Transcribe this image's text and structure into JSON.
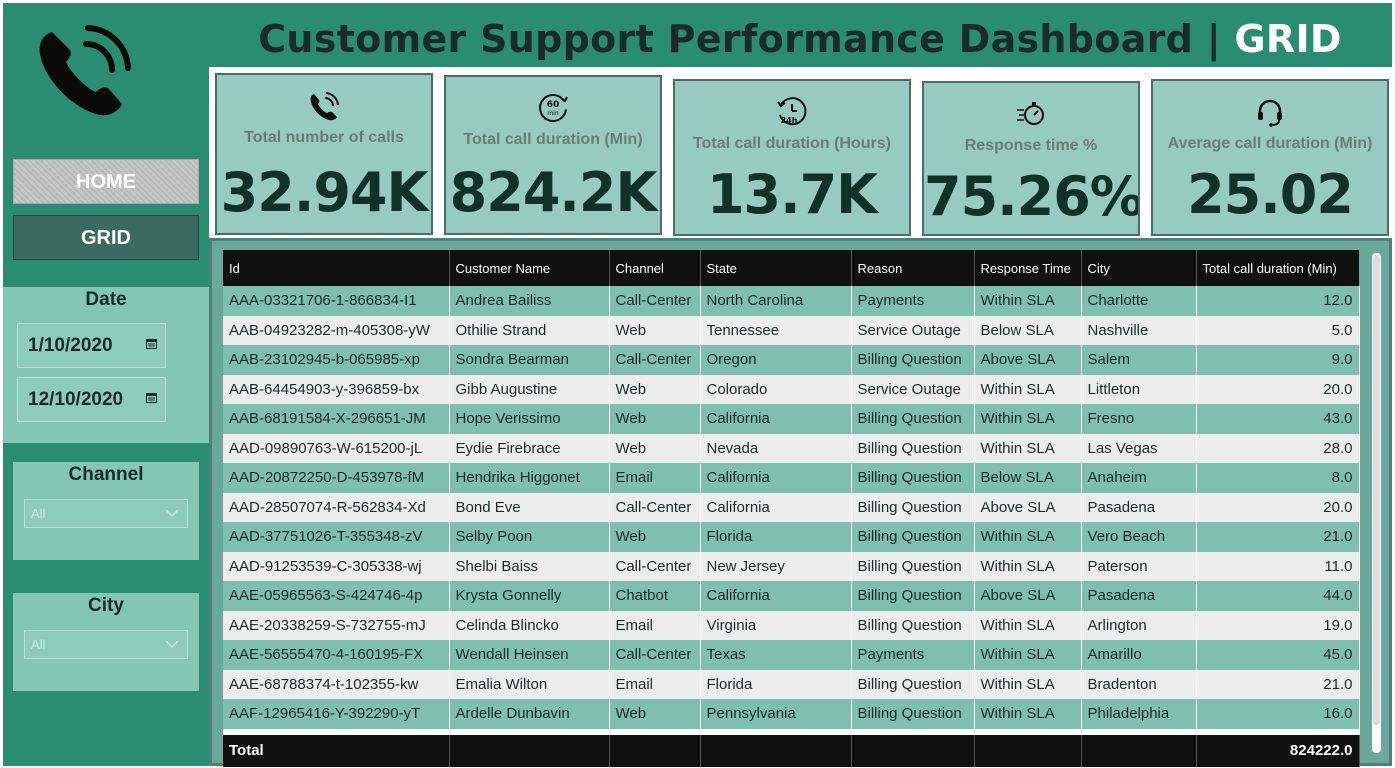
{
  "header": {
    "title_main": "Customer Support Performance Dashboard | ",
    "title_accent": "GRID",
    "logo_icon": "phone-ringing-icon"
  },
  "nav": {
    "home_label": "HOME",
    "grid_label": "GRID"
  },
  "filters": {
    "date_title": "Date",
    "start_date": "1/10/2020",
    "end_date": "12/10/2020",
    "channel_title": "Channel",
    "channel_value": "All",
    "city_title": "City",
    "city_value": "All"
  },
  "kpis": [
    {
      "label": "Total number of calls",
      "value": "32.94K",
      "icon": "phone-icon"
    },
    {
      "label": "Total call duration (Min)",
      "value": "824.2K",
      "icon": "60-min-timer-icon"
    },
    {
      "label": "Total call duration (Hours)",
      "value": "13.7K",
      "icon": "24h-clock-icon"
    },
    {
      "label": "Response time %",
      "value": "75.26%",
      "icon": "stopwatch-speed-icon"
    },
    {
      "label": "Average call duration (Min)",
      "value": "25.02",
      "icon": "headset-icon"
    }
  ],
  "table": {
    "columns": [
      "Id",
      "Customer Name",
      "Channel",
      "State",
      "Reason",
      "Response Time",
      "City",
      "Total call duration (Min)"
    ],
    "rows": [
      [
        "AAA-03321706-1-866834-I1",
        "Andrea Bailiss",
        "Call-Center",
        "North Carolina",
        "Payments",
        "Within SLA",
        "Charlotte",
        "12.0"
      ],
      [
        "AAB-04923282-m-405308-yW",
        "Othilie Strand",
        "Web",
        "Tennessee",
        "Service Outage",
        "Below SLA",
        "Nashville",
        "5.0"
      ],
      [
        "AAB-23102945-b-065985-xp",
        "Sondra Bearman",
        "Call-Center",
        "Oregon",
        "Billing Question",
        "Above SLA",
        "Salem",
        "9.0"
      ],
      [
        "AAB-64454903-y-396859-bx",
        "Gibb Augustine",
        "Web",
        "Colorado",
        "Service Outage",
        "Within SLA",
        "Littleton",
        "20.0"
      ],
      [
        "AAB-68191584-X-296651-JM",
        "Hope Verissimo",
        "Web",
        "California",
        "Billing Question",
        "Within SLA",
        "Fresno",
        "43.0"
      ],
      [
        "AAD-09890763-W-615200-jL",
        "Eydie Firebrace",
        "Web",
        "Nevada",
        "Billing Question",
        "Within SLA",
        "Las Vegas",
        "28.0"
      ],
      [
        "AAD-20872250-D-453978-fM",
        "Hendrika Higgonet",
        "Email",
        "California",
        "Billing Question",
        "Below SLA",
        "Anaheim",
        "8.0"
      ],
      [
        "AAD-28507074-R-562834-Xd",
        "Bond Eve",
        "Call-Center",
        "California",
        "Billing Question",
        "Above SLA",
        "Pasadena",
        "20.0"
      ],
      [
        "AAD-37751026-T-355348-zV",
        "Selby Poon",
        "Web",
        "Florida",
        "Billing Question",
        "Within SLA",
        "Vero Beach",
        "21.0"
      ],
      [
        "AAD-91253539-C-305338-wj",
        "Shelbi Baiss",
        "Call-Center",
        "New Jersey",
        "Billing Question",
        "Within SLA",
        "Paterson",
        "11.0"
      ],
      [
        "AAE-05965563-S-424746-4p",
        "Krysta Gonnelly",
        "Chatbot",
        "California",
        "Billing Question",
        "Above SLA",
        "Pasadena",
        "44.0"
      ],
      [
        "AAE-20338259-S-732755-mJ",
        "Celinda Blincko",
        "Email",
        "Virginia",
        "Billing Question",
        "Within SLA",
        "Arlington",
        "19.0"
      ],
      [
        "AAE-56555470-4-160195-FX",
        "Wendall Heinsen",
        "Call-Center",
        "Texas",
        "Payments",
        "Within SLA",
        "Amarillo",
        "45.0"
      ],
      [
        "AAE-68788374-t-102355-kw",
        "Emalia Wilton",
        "Email",
        "Florida",
        "Billing Question",
        "Within SLA",
        "Bradenton",
        "21.0"
      ],
      [
        "AAF-12965416-Y-392290-yT",
        "Ardelle Dunbavin",
        "Web",
        "Pennsylvania",
        "Billing Question",
        "Within SLA",
        "Philadelphia",
        "16.0"
      ]
    ],
    "total_label": "Total",
    "total_value": "824222.0"
  }
}
